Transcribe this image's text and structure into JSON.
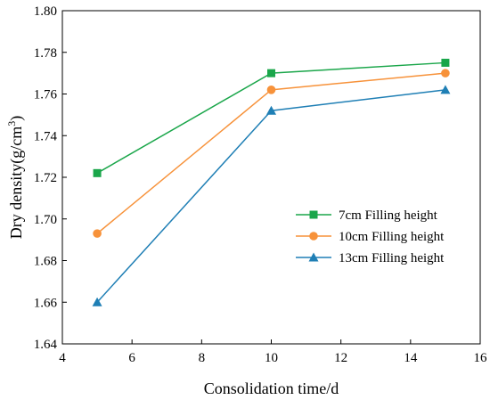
{
  "chart_data": {
    "type": "line",
    "title": "",
    "xlabel": "Consolidation time/d",
    "ylabel": {
      "main": "Dry density(g/cm",
      "sup": "3",
      "close": ")"
    },
    "xlim": [
      4,
      16
    ],
    "ylim": [
      1.64,
      1.8
    ],
    "xticks": [
      4,
      6,
      8,
      10,
      12,
      14,
      16
    ],
    "yticks": [
      "1.64",
      "1.66",
      "1.68",
      "1.70",
      "1.72",
      "1.74",
      "1.76",
      "1.78",
      "1.80"
    ],
    "legend_position": "right",
    "grid": false,
    "series": [
      {
        "name": "7cm Filling height",
        "color": "#1aa64a",
        "marker": "square",
        "x": [
          5,
          10,
          15
        ],
        "y": [
          1.722,
          1.77,
          1.775
        ]
      },
      {
        "name": "10cm Filling height",
        "color": "#f7923a",
        "marker": "circle",
        "x": [
          5,
          10,
          15
        ],
        "y": [
          1.693,
          1.762,
          1.77
        ]
      },
      {
        "name": "13cm Filling height",
        "color": "#1f7fb5",
        "marker": "triangle",
        "x": [
          5,
          10,
          15
        ],
        "y": [
          1.66,
          1.752,
          1.762
        ]
      }
    ]
  }
}
